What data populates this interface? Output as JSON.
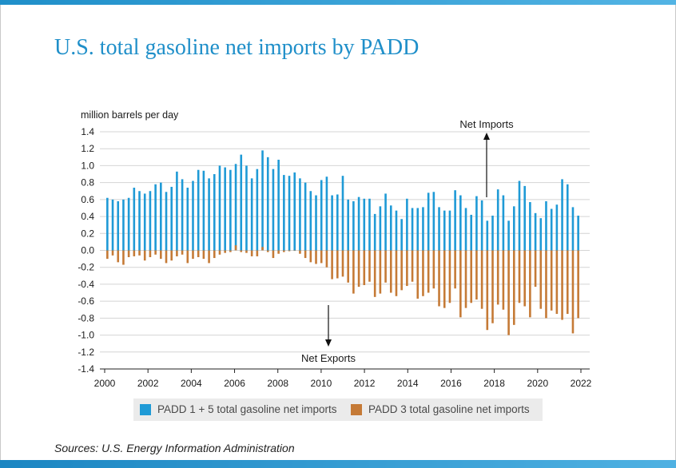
{
  "slide": {
    "title": "U.S. total gasoline net imports by PADD",
    "sources": "Sources: U.S. Energy Information Administration"
  },
  "colors": {
    "accent": "#1f8fc9",
    "padd15": "#1f9ad6",
    "padd3": "#c57a36",
    "grid": "#d4d4d4",
    "legend_bg": "#ebebeb"
  },
  "chart_data": {
    "type": "bar",
    "title": "",
    "ylabel": "million barrels per day",
    "xlabel": "",
    "ylim": [
      -1.4,
      1.4
    ],
    "y_ticks": [
      "1.4",
      "1.2",
      "1.0",
      "0.8",
      "0.6",
      "0.4",
      "0.2",
      "0.0",
      "-0.2",
      "-0.4",
      "-0.6",
      "-0.8",
      "-1.0",
      "-1.2",
      "-1.4"
    ],
    "x_range": [
      2000,
      2022
    ],
    "x_ticks": [
      "2000",
      "2002",
      "2004",
      "2006",
      "2008",
      "2010",
      "2012",
      "2014",
      "2016",
      "2018",
      "2020",
      "2022"
    ],
    "frequency": "quarterly",
    "start_quarter": "2000 Q1",
    "grid": true,
    "legend_position": "bottom",
    "annotations": [
      {
        "text": "Net Imports",
        "direction": "up"
      },
      {
        "text": "Net Exports",
        "direction": "down"
      }
    ],
    "series": [
      {
        "name": "PADD 1 + 5 total gasoline net imports",
        "values": [
          0.62,
          0.6,
          0.58,
          0.6,
          0.62,
          0.74,
          0.7,
          0.67,
          0.7,
          0.78,
          0.8,
          0.69,
          0.75,
          0.93,
          0.84,
          0.74,
          0.82,
          0.95,
          0.94,
          0.85,
          0.9,
          1.0,
          0.98,
          0.95,
          1.02,
          1.13,
          1.0,
          0.85,
          0.96,
          1.18,
          1.1,
          0.96,
          1.07,
          0.89,
          0.88,
          0.92,
          0.85,
          0.8,
          0.7,
          0.65,
          0.83,
          0.87,
          0.65,
          0.66,
          0.88,
          0.6,
          0.58,
          0.63,
          0.61,
          0.61,
          0.43,
          0.52,
          0.67,
          0.53,
          0.47,
          0.37,
          0.61,
          0.5,
          0.5,
          0.51,
          0.68,
          0.69,
          0.51,
          0.47,
          0.47,
          0.71,
          0.65,
          0.5,
          0.42,
          0.64,
          0.59,
          0.35,
          0.41,
          0.72,
          0.65,
          0.35,
          0.52,
          0.82,
          0.76,
          0.57,
          0.44,
          0.38,
          0.58,
          0.49,
          0.54,
          0.84,
          0.78,
          0.51,
          0.41
        ]
      },
      {
        "name": "PADD 3 total gasoline net imports",
        "values": [
          -0.1,
          -0.06,
          -0.14,
          -0.17,
          -0.08,
          -0.07,
          -0.06,
          -0.12,
          -0.08,
          -0.05,
          -0.1,
          -0.15,
          -0.12,
          -0.07,
          -0.05,
          -0.15,
          -0.1,
          -0.08,
          -0.1,
          -0.15,
          -0.09,
          -0.05,
          -0.03,
          -0.02,
          0.06,
          -0.02,
          -0.03,
          -0.07,
          -0.07,
          0.04,
          -0.02,
          -0.09,
          -0.04,
          -0.02,
          -0.01,
          0.0,
          -0.04,
          -0.09,
          -0.14,
          -0.16,
          -0.15,
          -0.2,
          -0.34,
          -0.33,
          -0.31,
          -0.38,
          -0.51,
          -0.43,
          -0.41,
          -0.37,
          -0.55,
          -0.51,
          -0.38,
          -0.5,
          -0.54,
          -0.47,
          -0.42,
          -0.37,
          -0.57,
          -0.54,
          -0.5,
          -0.45,
          -0.66,
          -0.68,
          -0.62,
          -0.45,
          -0.79,
          -0.68,
          -0.62,
          -0.58,
          -0.69,
          -0.94,
          -0.86,
          -0.64,
          -0.7,
          -1.0,
          -0.88,
          -0.62,
          -0.66,
          -0.79,
          -0.43,
          -0.69,
          -0.8,
          -0.71,
          -0.75,
          -0.82,
          -0.75,
          -0.98,
          -0.8
        ]
      }
    ]
  }
}
